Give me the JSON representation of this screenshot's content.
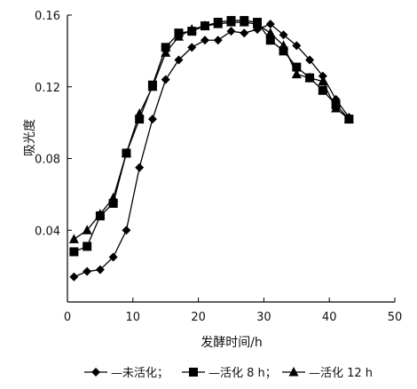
{
  "chart_data": {
    "type": "line",
    "title": "",
    "xlabel": "发酵时间/h",
    "ylabel": "吸光度",
    "xlim": [
      0,
      50
    ],
    "ylim": [
      0,
      0.16
    ],
    "xticks": [
      0,
      10,
      20,
      30,
      40,
      50
    ],
    "yticks": [
      0.04,
      0.08,
      0.12,
      0.16
    ],
    "ytick_labels": [
      "0.04",
      "0.08",
      "0.12",
      "0.16"
    ],
    "grid": false,
    "legend_position": "bottom",
    "series": [
      {
        "name": "未活化",
        "marker": "diamond",
        "x": [
          1,
          3,
          5,
          7,
          9,
          11,
          13,
          15,
          17,
          19,
          21,
          23,
          25,
          27,
          29,
          31,
          33,
          35,
          37,
          39,
          41,
          43
        ],
        "y": [
          0.014,
          0.017,
          0.018,
          0.025,
          0.04,
          0.075,
          0.102,
          0.124,
          0.135,
          0.142,
          0.146,
          0.146,
          0.151,
          0.15,
          0.152,
          0.155,
          0.149,
          0.143,
          0.135,
          0.126,
          0.113,
          0.103
        ]
      },
      {
        "name": "活化 8 h",
        "marker": "square",
        "x": [
          1,
          3,
          5,
          7,
          9,
          11,
          13,
          15,
          17,
          19,
          21,
          23,
          25,
          27,
          29,
          31,
          33,
          35,
          37,
          39,
          41,
          43
        ],
        "y": [
          0.028,
          0.031,
          0.048,
          0.055,
          0.083,
          0.102,
          0.121,
          0.142,
          0.15,
          0.151,
          0.154,
          0.156,
          0.157,
          0.157,
          0.156,
          0.146,
          0.14,
          0.131,
          0.125,
          0.118,
          0.11,
          0.102
        ]
      },
      {
        "name": "活化 12 h",
        "marker": "triangle",
        "x": [
          1,
          3,
          5,
          7,
          9,
          11,
          13,
          15,
          17,
          19,
          21,
          23,
          25,
          27,
          29,
          31,
          33,
          35,
          37,
          39,
          41,
          43
        ],
        "y": [
          0.035,
          0.04,
          0.049,
          0.058,
          0.083,
          0.105,
          0.12,
          0.139,
          0.148,
          0.152,
          0.154,
          0.155,
          0.156,
          0.156,
          0.155,
          0.15,
          0.143,
          0.127,
          0.125,
          0.123,
          0.108,
          0.102
        ]
      }
    ]
  }
}
